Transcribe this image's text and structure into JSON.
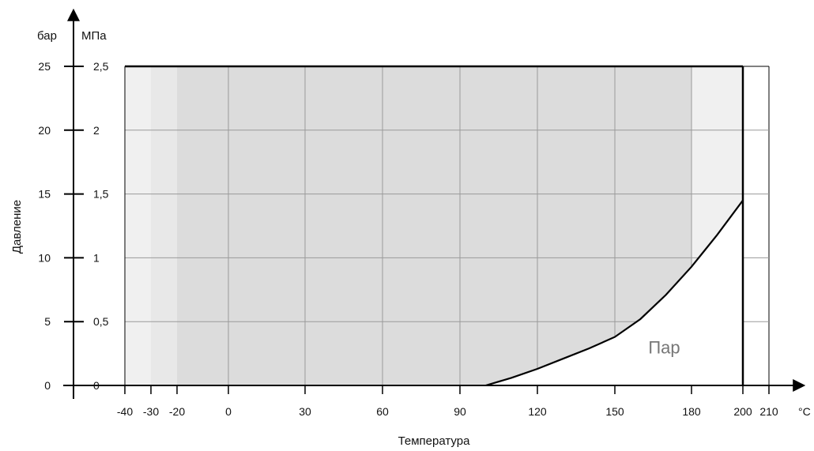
{
  "chart_data": {
    "type": "area",
    "xlabel": "Температура",
    "ylabel": "Давление",
    "x_unit": "°C",
    "y_units": {
      "left": "бар",
      "right": "МПа"
    },
    "xlim": [
      -40,
      210
    ],
    "ylim_bar": [
      0,
      25
    ],
    "x_ticks": [
      -40,
      -30,
      -20,
      0,
      30,
      60,
      90,
      120,
      150,
      180,
      200,
      210
    ],
    "x_tick_labels": [
      "-40",
      "-30",
      "-20",
      "0",
      "30",
      "60",
      "90",
      "120",
      "150",
      "180",
      "200",
      "210"
    ],
    "y_ticks_bar": [
      0,
      5,
      10,
      15,
      20,
      25
    ],
    "y_tick_labels_bar": [
      "0",
      "5",
      "10",
      "15",
      "20",
      "25"
    ],
    "y_tick_labels_mpa": [
      "0",
      "0,5",
      "1",
      "1,5",
      "2",
      "2,5"
    ],
    "grid": true,
    "regions": [
      {
        "x_range": [
          -40,
          -30
        ],
        "y_range": [
          0,
          25
        ],
        "color": "#f0f0f0"
      },
      {
        "x_range": [
          -30,
          -20
        ],
        "y_range": [
          0,
          25
        ],
        "color": "#e8e8e8"
      },
      {
        "x_range": [
          -20,
          180
        ],
        "y_range": [
          0,
          25
        ],
        "color": "#dcdcdc"
      },
      {
        "x_range": [
          180,
          200
        ],
        "y_range": [
          0,
          25
        ],
        "color": "#f0f0f0"
      }
    ],
    "steam_curve": {
      "x": [
        100,
        110,
        120,
        130,
        140,
        150,
        160,
        170,
        180,
        190,
        200
      ],
      "y": [
        0,
        0.6,
        1.3,
        2.1,
        2.9,
        3.8,
        5.2,
        7.1,
        9.3,
        11.8,
        14.5
      ]
    },
    "boundary": {
      "max_pressure_bar": 25,
      "max_temperature_c": 200
    },
    "annotations": [
      {
        "text": "Пар",
        "x": 160,
        "y": 3
      }
    ],
    "colors": {
      "axis": "#000000",
      "grid": "#9a9a9a",
      "curve": "#000000",
      "steam_region": "#ffffff",
      "label": "#777777"
    }
  }
}
